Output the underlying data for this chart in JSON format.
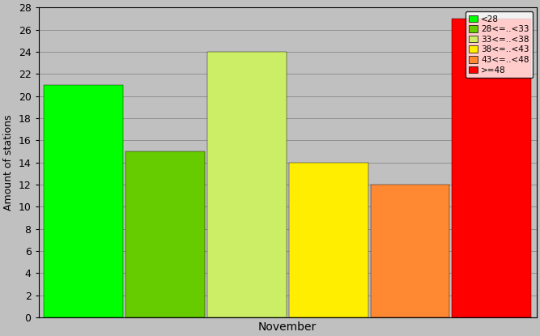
{
  "bars": [
    {
      "label": "<28",
      "value": 21,
      "color": "#00FF00",
      "color2": "#66FF00"
    },
    {
      "label": "28<=..<33",
      "value": 15,
      "color": "#66CC00",
      "color2": "#99DD44"
    },
    {
      "label": "33<=..<38",
      "value": 24,
      "color": "#CCEE66",
      "color2": "#EEFF99"
    },
    {
      "label": "38<=..<43",
      "value": 14,
      "color": "#FFEE00",
      "color2": "#FFFF44"
    },
    {
      "label": "43<=..<48",
      "value": 12,
      "color": "#FF8833",
      "color2": "#FFAA66"
    },
    {
      "label": ">=48",
      "value": 27,
      "color": "#FF0000",
      "color2": "#FF3333"
    }
  ],
  "ylabel": "Amount of stations",
  "xlabel": "November",
  "ylim": [
    0,
    28
  ],
  "yticks": [
    0,
    2,
    4,
    6,
    8,
    10,
    12,
    14,
    16,
    18,
    20,
    22,
    24,
    26,
    28
  ],
  "fig_bg_color": "#C0C0C0",
  "plot_bg_color": "#C0C0C0",
  "grid_color": "#AAAAAA"
}
